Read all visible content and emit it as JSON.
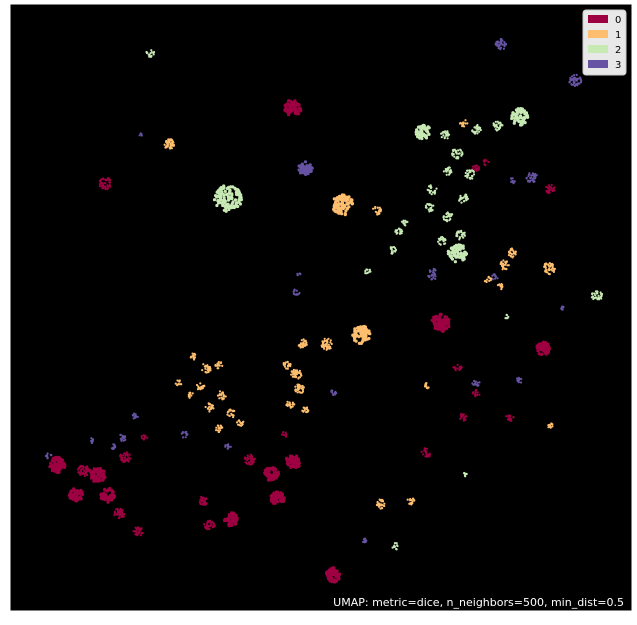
{
  "chart_data": {
    "type": "scatter",
    "title": "",
    "xlabel": "",
    "ylabel": "",
    "annotation": "UMAP: metric=dice, n_neighbors=500, min_dist=0.5",
    "background": "#000000",
    "axes_visible": false,
    "grid": false,
    "legend_placement": "top-right",
    "xlim": [
      0,
      100
    ],
    "ylim": [
      0,
      100
    ],
    "series": [
      {
        "name": "0",
        "color": "#9e0142",
        "clusters": [
          {
            "x": 45.5,
            "y": 83.0,
            "r": 1.4,
            "n": 70
          },
          {
            "x": 15.2,
            "y": 70.5,
            "r": 1.0,
            "n": 45
          },
          {
            "x": 69.3,
            "y": 47.5,
            "r": 1.5,
            "n": 70
          },
          {
            "x": 85.8,
            "y": 43.2,
            "r": 1.1,
            "n": 55
          },
          {
            "x": 87.0,
            "y": 69.5,
            "r": 0.8,
            "n": 25
          },
          {
            "x": 75.0,
            "y": 73.0,
            "r": 0.6,
            "n": 18
          },
          {
            "x": 72.0,
            "y": 40.0,
            "r": 0.7,
            "n": 14
          },
          {
            "x": 75.0,
            "y": 35.8,
            "r": 0.6,
            "n": 14
          },
          {
            "x": 73.0,
            "y": 32.0,
            "r": 0.7,
            "n": 18
          },
          {
            "x": 80.5,
            "y": 31.8,
            "r": 0.7,
            "n": 16
          },
          {
            "x": 67.0,
            "y": 26.0,
            "r": 0.8,
            "n": 20
          },
          {
            "x": 7.5,
            "y": 24.0,
            "r": 1.3,
            "n": 70
          },
          {
            "x": 11.8,
            "y": 23.0,
            "r": 1.0,
            "n": 45
          },
          {
            "x": 14.0,
            "y": 22.3,
            "r": 1.2,
            "n": 60
          },
          {
            "x": 10.5,
            "y": 19.0,
            "r": 1.1,
            "n": 50
          },
          {
            "x": 15.5,
            "y": 19.0,
            "r": 1.2,
            "n": 50
          },
          {
            "x": 18.5,
            "y": 25.3,
            "r": 0.9,
            "n": 40
          },
          {
            "x": 17.5,
            "y": 16.0,
            "r": 0.9,
            "n": 40
          },
          {
            "x": 20.5,
            "y": 13.0,
            "r": 0.8,
            "n": 30
          },
          {
            "x": 31.0,
            "y": 18.0,
            "r": 0.8,
            "n": 30
          },
          {
            "x": 32.0,
            "y": 14.0,
            "r": 0.9,
            "n": 35
          },
          {
            "x": 35.5,
            "y": 15.0,
            "r": 1.1,
            "n": 55
          },
          {
            "x": 38.5,
            "y": 24.8,
            "r": 0.9,
            "n": 40
          },
          {
            "x": 42.0,
            "y": 22.5,
            "r": 1.2,
            "n": 55
          },
          {
            "x": 45.5,
            "y": 24.5,
            "r": 1.2,
            "n": 55
          },
          {
            "x": 43.0,
            "y": 18.5,
            "r": 1.1,
            "n": 50
          },
          {
            "x": 44.0,
            "y": 29.0,
            "r": 0.5,
            "n": 10
          },
          {
            "x": 52.0,
            "y": 5.8,
            "r": 1.2,
            "n": 55
          },
          {
            "x": 21.5,
            "y": 28.5,
            "r": 0.5,
            "n": 10
          },
          {
            "x": 76.5,
            "y": 74.0,
            "r": 0.5,
            "n": 8
          }
        ]
      },
      {
        "name": "1",
        "color": "#fdbf6f",
        "clusters": [
          {
            "x": 25.5,
            "y": 77.0,
            "r": 0.9,
            "n": 40
          },
          {
            "x": 53.5,
            "y": 67.0,
            "r": 1.7,
            "n": 90
          },
          {
            "x": 59.0,
            "y": 66.0,
            "r": 0.7,
            "n": 20
          },
          {
            "x": 73.0,
            "y": 80.5,
            "r": 0.6,
            "n": 15
          },
          {
            "x": 81.0,
            "y": 59.0,
            "r": 0.8,
            "n": 25
          },
          {
            "x": 86.8,
            "y": 56.5,
            "r": 1.0,
            "n": 40
          },
          {
            "x": 79.5,
            "y": 57.0,
            "r": 0.8,
            "n": 25
          },
          {
            "x": 77.0,
            "y": 54.5,
            "r": 0.6,
            "n": 12
          },
          {
            "x": 79.0,
            "y": 53.5,
            "r": 0.5,
            "n": 10
          },
          {
            "x": 56.5,
            "y": 45.5,
            "r": 1.5,
            "n": 75
          },
          {
            "x": 51.0,
            "y": 44.0,
            "r": 1.0,
            "n": 40
          },
          {
            "x": 47.0,
            "y": 44.0,
            "r": 0.8,
            "n": 30
          },
          {
            "x": 44.5,
            "y": 40.5,
            "r": 0.7,
            "n": 20
          },
          {
            "x": 46.0,
            "y": 39.0,
            "r": 0.9,
            "n": 35
          },
          {
            "x": 46.5,
            "y": 36.5,
            "r": 0.8,
            "n": 30
          },
          {
            "x": 45.0,
            "y": 34.0,
            "r": 0.7,
            "n": 20
          },
          {
            "x": 47.5,
            "y": 33.0,
            "r": 0.6,
            "n": 15
          },
          {
            "x": 29.5,
            "y": 42.0,
            "r": 0.6,
            "n": 15
          },
          {
            "x": 31.5,
            "y": 40.0,
            "r": 0.8,
            "n": 25
          },
          {
            "x": 33.5,
            "y": 40.5,
            "r": 0.6,
            "n": 15
          },
          {
            "x": 30.5,
            "y": 37.0,
            "r": 0.7,
            "n": 20
          },
          {
            "x": 34.0,
            "y": 35.5,
            "r": 0.7,
            "n": 20
          },
          {
            "x": 32.0,
            "y": 33.5,
            "r": 0.7,
            "n": 20
          },
          {
            "x": 35.5,
            "y": 32.5,
            "r": 0.7,
            "n": 20
          },
          {
            "x": 37.0,
            "y": 31.0,
            "r": 0.6,
            "n": 15
          },
          {
            "x": 33.5,
            "y": 30.0,
            "r": 0.6,
            "n": 15
          },
          {
            "x": 27.0,
            "y": 37.5,
            "r": 0.5,
            "n": 10
          },
          {
            "x": 29.0,
            "y": 35.5,
            "r": 0.5,
            "n": 10
          },
          {
            "x": 59.5,
            "y": 17.5,
            "r": 0.8,
            "n": 30
          },
          {
            "x": 64.5,
            "y": 18.0,
            "r": 0.6,
            "n": 15
          },
          {
            "x": 67.0,
            "y": 37.0,
            "r": 0.5,
            "n": 10
          },
          {
            "x": 87.0,
            "y": 30.5,
            "r": 0.5,
            "n": 10
          }
        ]
      },
      {
        "name": "2",
        "color": "#c7e9b4",
        "clusters": [
          {
            "x": 22.5,
            "y": 92.0,
            "r": 0.7,
            "n": 15
          },
          {
            "x": 35.0,
            "y": 68.0,
            "r": 2.2,
            "n": 110
          },
          {
            "x": 66.5,
            "y": 79.0,
            "r": 1.2,
            "n": 45
          },
          {
            "x": 70.0,
            "y": 78.5,
            "r": 0.8,
            "n": 25
          },
          {
            "x": 75.0,
            "y": 79.5,
            "r": 0.8,
            "n": 25
          },
          {
            "x": 78.5,
            "y": 80.0,
            "r": 0.8,
            "n": 25
          },
          {
            "x": 82.0,
            "y": 81.5,
            "r": 1.4,
            "n": 55
          },
          {
            "x": 72.0,
            "y": 75.5,
            "r": 0.9,
            "n": 30
          },
          {
            "x": 74.0,
            "y": 72.0,
            "r": 0.8,
            "n": 25
          },
          {
            "x": 70.5,
            "y": 72.5,
            "r": 0.7,
            "n": 20
          },
          {
            "x": 73.0,
            "y": 68.0,
            "r": 0.8,
            "n": 25
          },
          {
            "x": 68.0,
            "y": 69.5,
            "r": 0.8,
            "n": 25
          },
          {
            "x": 70.5,
            "y": 65.0,
            "r": 0.8,
            "n": 25
          },
          {
            "x": 67.5,
            "y": 66.5,
            "r": 0.7,
            "n": 20
          },
          {
            "x": 72.5,
            "y": 62.0,
            "r": 0.8,
            "n": 25
          },
          {
            "x": 69.5,
            "y": 61.0,
            "r": 0.7,
            "n": 20
          },
          {
            "x": 72.0,
            "y": 59.0,
            "r": 1.5,
            "n": 60
          },
          {
            "x": 62.5,
            "y": 62.5,
            "r": 0.6,
            "n": 18
          },
          {
            "x": 61.5,
            "y": 59.5,
            "r": 0.6,
            "n": 15
          },
          {
            "x": 63.5,
            "y": 64.0,
            "r": 0.5,
            "n": 10
          },
          {
            "x": 57.5,
            "y": 56.0,
            "r": 0.5,
            "n": 10
          },
          {
            "x": 94.5,
            "y": 52.0,
            "r": 0.9,
            "n": 30
          },
          {
            "x": 80.0,
            "y": 48.5,
            "r": 0.4,
            "n": 6
          },
          {
            "x": 73.5,
            "y": 22.5,
            "r": 0.5,
            "n": 8
          },
          {
            "x": 62.0,
            "y": 10.5,
            "r": 0.6,
            "n": 12
          }
        ]
      },
      {
        "name": "3",
        "color": "#6753a3",
        "clusters": [
          {
            "x": 79.0,
            "y": 93.5,
            "r": 0.9,
            "n": 35
          },
          {
            "x": 91.0,
            "y": 87.5,
            "r": 1.0,
            "n": 40
          },
          {
            "x": 47.5,
            "y": 73.0,
            "r": 1.1,
            "n": 45
          },
          {
            "x": 84.0,
            "y": 71.5,
            "r": 0.9,
            "n": 35
          },
          {
            "x": 68.0,
            "y": 55.5,
            "r": 0.9,
            "n": 25
          },
          {
            "x": 78.0,
            "y": 55.0,
            "r": 0.5,
            "n": 10
          },
          {
            "x": 81.0,
            "y": 71.0,
            "r": 0.5,
            "n": 10
          },
          {
            "x": 89.0,
            "y": 50.0,
            "r": 0.4,
            "n": 8
          },
          {
            "x": 46.0,
            "y": 52.5,
            "r": 0.6,
            "n": 12
          },
          {
            "x": 46.5,
            "y": 55.5,
            "r": 0.4,
            "n": 6
          },
          {
            "x": 75.0,
            "y": 37.5,
            "r": 0.6,
            "n": 12
          },
          {
            "x": 82.0,
            "y": 38.0,
            "r": 0.5,
            "n": 10
          },
          {
            "x": 20.0,
            "y": 32.0,
            "r": 0.5,
            "n": 12
          },
          {
            "x": 18.0,
            "y": 28.5,
            "r": 0.6,
            "n": 15
          },
          {
            "x": 16.5,
            "y": 27.0,
            "r": 0.5,
            "n": 12
          },
          {
            "x": 13.0,
            "y": 28.0,
            "r": 0.4,
            "n": 8
          },
          {
            "x": 28.0,
            "y": 29.0,
            "r": 0.6,
            "n": 12
          },
          {
            "x": 35.0,
            "y": 27.0,
            "r": 0.5,
            "n": 10
          },
          {
            "x": 6.0,
            "y": 25.5,
            "r": 0.5,
            "n": 8
          },
          {
            "x": 52.0,
            "y": 36.0,
            "r": 0.5,
            "n": 10
          },
          {
            "x": 21.0,
            "y": 78.5,
            "r": 0.3,
            "n": 4
          },
          {
            "x": 57.0,
            "y": 11.5,
            "r": 0.4,
            "n": 8
          }
        ]
      }
    ]
  }
}
